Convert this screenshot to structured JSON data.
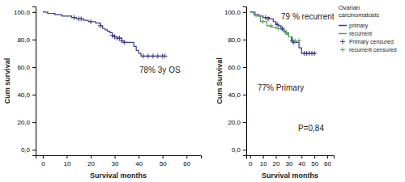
{
  "chart_data": [
    {
      "type": "line",
      "x_label": "Survival months",
      "y_label": "Cum survival",
      "xlim": [
        -3,
        66
      ],
      "ylim": [
        -4,
        104
      ],
      "xticks": [
        0,
        10,
        20,
        30,
        40,
        50,
        60
      ],
      "yticks": [
        {
          "value": 0,
          "label": "0,0"
        },
        {
          "value": 20,
          "label": "20,0"
        },
        {
          "value": 40,
          "label": "40,0"
        },
        {
          "value": 60,
          "label": "60,0"
        },
        {
          "value": 80,
          "label": "80,0"
        },
        {
          "value": 100,
          "label": "100,0"
        }
      ],
      "annotations": [
        "78% 3y OS"
      ],
      "series": [
        {
          "type": "line",
          "line_style": "step",
          "color": "#3a3a8c",
          "x": [
            0,
            2,
            5,
            8,
            12,
            14,
            17,
            19,
            22,
            24,
            25,
            26,
            27,
            28,
            29,
            30,
            31,
            33,
            34,
            38,
            39,
            40,
            41,
            51
          ],
          "values": [
            100,
            99,
            98,
            97,
            96,
            95,
            94,
            93,
            92,
            90,
            88,
            87,
            86,
            85,
            83,
            82,
            81,
            79,
            78,
            75,
            72,
            70,
            68,
            68
          ]
        },
        {
          "type": "scatter",
          "marker": "plus",
          "color": "#3a3a8c",
          "x": [
            13,
            15,
            16,
            20,
            24,
            29,
            30,
            31,
            32,
            33,
            34,
            42,
            44,
            46,
            48,
            50,
            51
          ],
          "values": [
            96,
            95,
            95,
            93,
            90,
            83,
            82,
            81,
            81,
            79,
            78,
            68,
            68,
            68,
            68,
            68,
            68
          ]
        }
      ]
    },
    {
      "type": "line",
      "x_label": "Survival months",
      "y_label": "Cum Survival",
      "xlim": [
        -3,
        65
      ],
      "ylim": [
        -4,
        104
      ],
      "xticks": [
        0,
        10,
        20,
        30,
        40,
        50,
        60
      ],
      "yticks": [
        {
          "value": 0,
          "label": "0,0"
        },
        {
          "value": 20,
          "label": "20,0"
        },
        {
          "value": 40,
          "label": "40,0"
        },
        {
          "value": 60,
          "label": "60,0"
        },
        {
          "value": 80,
          "label": "80,0"
        },
        {
          "value": 100,
          "label": "100,0"
        }
      ],
      "annotations": [
        "79 % recurrent",
        "77% Primary",
        "P=0,84"
      ],
      "legend": "right",
      "legend_title": "Ovarian carcinomatosis",
      "series": [
        {
          "name": "primary",
          "type": "line",
          "line_style": "step",
          "color": "#3a3a8c",
          "x": [
            0,
            3,
            7,
            10,
            15,
            18,
            20,
            22,
            24,
            26,
            28,
            30,
            32,
            34,
            38,
            40,
            51
          ],
          "values": [
            100,
            98,
            97,
            96,
            95,
            93,
            91,
            90,
            88,
            86,
            84,
            82,
            79,
            78,
            74,
            70,
            70
          ]
        },
        {
          "name": "recurrent",
          "type": "line",
          "line_style": "step",
          "color": "#5ba05b",
          "x": [
            0,
            4,
            8,
            13,
            17,
            20,
            24,
            27,
            30,
            33,
            38
          ],
          "values": [
            100,
            97,
            93,
            90,
            89,
            88,
            87,
            85,
            82,
            79,
            79
          ]
        },
        {
          "name": "Primary censured",
          "type": "scatter",
          "marker": "plus",
          "color": "#3a3a8c",
          "x": [
            12,
            14,
            21,
            25,
            33,
            34,
            42,
            44,
            46,
            48,
            50
          ],
          "values": [
            96,
            95,
            91,
            88,
            79,
            78,
            70,
            70,
            70,
            70,
            70
          ]
        },
        {
          "name": "recurrent censured",
          "type": "scatter",
          "marker": "plus",
          "color": "#5ba05b",
          "x": [
            10,
            16,
            22,
            28,
            35,
            38
          ],
          "values": [
            93,
            90,
            88,
            85,
            79,
            79
          ]
        }
      ]
    }
  ]
}
